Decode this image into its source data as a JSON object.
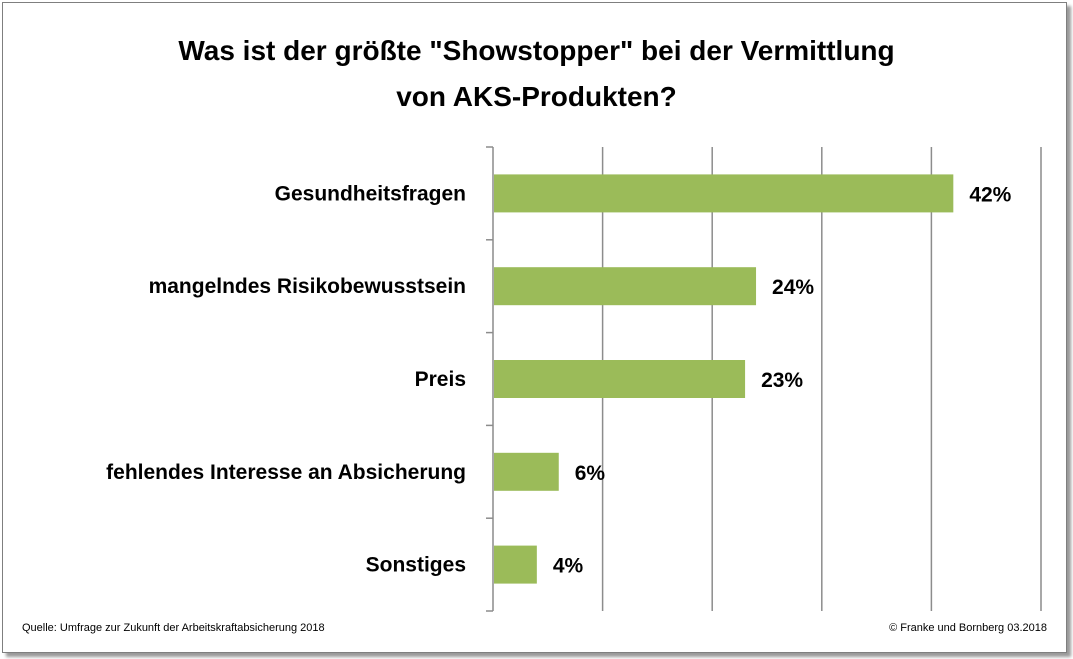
{
  "chart_data": {
    "type": "bar",
    "orientation": "horizontal",
    "title_lines": [
      "Was ist der größte \"Showstopper\" bei der Vermittlung",
      "von AKS-Produkten?"
    ],
    "categories": [
      "Gesundheitsfragen",
      "mangelndes Risikobewusstsein",
      "Preis",
      "fehlendes Interesse an Absicherung",
      "Sonstiges"
    ],
    "values": [
      42,
      24,
      23,
      6,
      4
    ],
    "value_labels": [
      "42%",
      "24%",
      "23%",
      "6%",
      "4%"
    ],
    "xlim": [
      0,
      50
    ],
    "grid": true,
    "bar_color": "#9bbb59"
  },
  "footer": {
    "source": "Quelle: Umfrage zur Zukunft der Arbeitskraftabsicherung 2018",
    "copyright": "© Franke und Bornberg 03.2018"
  }
}
